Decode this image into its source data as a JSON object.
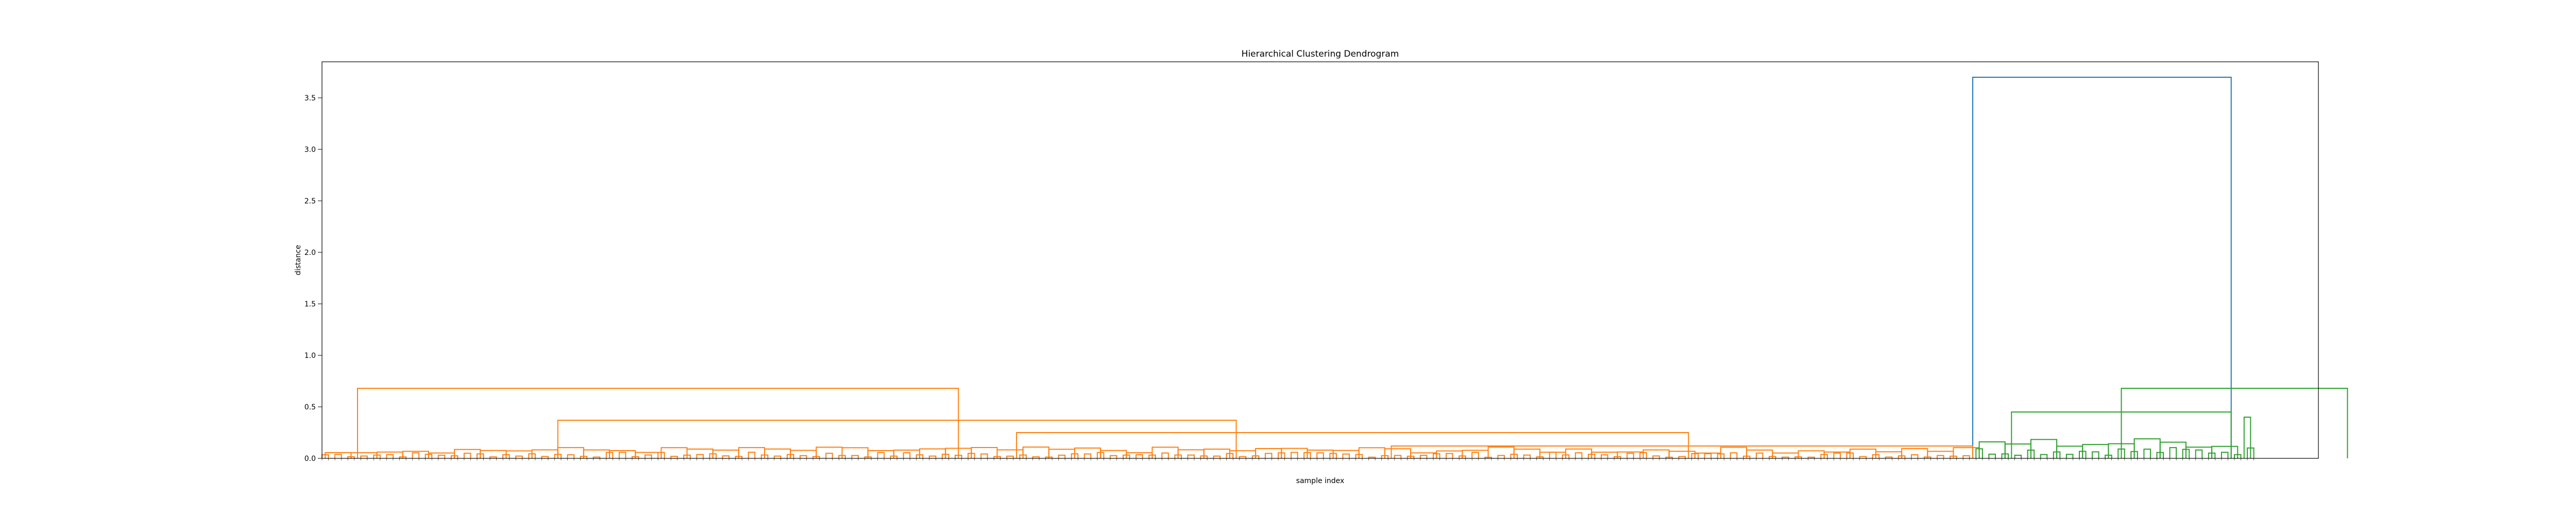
{
  "chart_data": {
    "type": "dendrogram",
    "title": "Hierarchical Clustering Dendrogram",
    "xlabel": "sample index",
    "ylabel": "distance",
    "ylim": [
      0,
      3.85
    ],
    "yticks": [
      0.0,
      0.5,
      1.0,
      1.5,
      2.0,
      2.5,
      3.0,
      3.5
    ],
    "grid": false,
    "leaf_count": 300,
    "clusters": [
      {
        "color": "#ff7f0e",
        "leaf_count": 256,
        "root_height": 0.68
      },
      {
        "color": "#2ca02c",
        "leaf_count": 44,
        "root_height": 0.68
      }
    ],
    "top_link_color": "#1f77b4",
    "root_height": 3.7,
    "major_merges": [
      {
        "color": "#1f77b4",
        "x1": 2560,
        "x2": 2960,
        "height": 3.7
      },
      {
        "color": "#ff7f0e",
        "x1": 60,
        "x2": 990,
        "height": 0.68
      },
      {
        "color": "#ff7f0e",
        "x1": 370,
        "x2": 1420,
        "height": 0.37
      },
      {
        "color": "#ff7f0e",
        "x1": 1080,
        "x2": 2120,
        "height": 0.25
      },
      {
        "color": "#ff7f0e",
        "x1": 1660,
        "x2": 2560,
        "height": 0.12
      },
      {
        "color": "#2ca02c",
        "x1": 2790,
        "x2": 3140,
        "height": 0.68
      },
      {
        "color": "#2ca02c",
        "x1": 2620,
        "x2": 2960,
        "height": 0.45
      },
      {
        "color": "#2ca02c",
        "x1": 2980,
        "x2": 2990,
        "height": 0.4
      }
    ]
  }
}
